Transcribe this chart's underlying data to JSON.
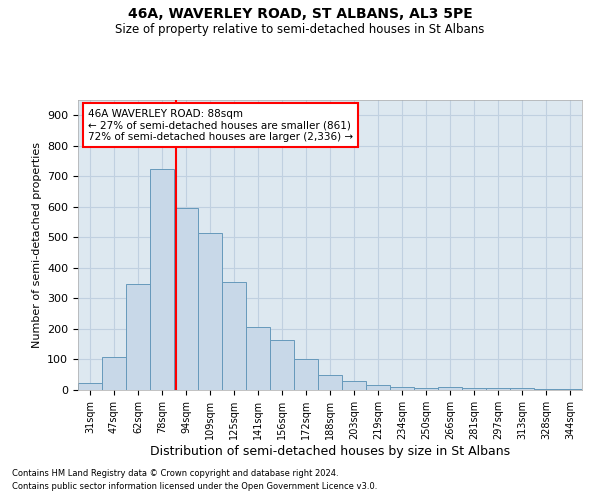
{
  "title1": "46A, WAVERLEY ROAD, ST ALBANS, AL3 5PE",
  "title2": "Size of property relative to semi-detached houses in St Albans",
  "xlabel": "Distribution of semi-detached houses by size in St Albans",
  "ylabel": "Number of semi-detached properties",
  "categories": [
    "31sqm",
    "47sqm",
    "62sqm",
    "78sqm",
    "94sqm",
    "109sqm",
    "125sqm",
    "141sqm",
    "156sqm",
    "172sqm",
    "188sqm",
    "203sqm",
    "219sqm",
    "234sqm",
    "250sqm",
    "266sqm",
    "281sqm",
    "297sqm",
    "313sqm",
    "328sqm",
    "344sqm"
  ],
  "bar_values": [
    22,
    107,
    347,
    725,
    595,
    515,
    355,
    207,
    165,
    103,
    50,
    30,
    18,
    10,
    5,
    10,
    5,
    5,
    5,
    3,
    3
  ],
  "bar_color": "#c8d8e8",
  "bar_edge_color": "#6699bb",
  "grid_color": "#c0d0e0",
  "background_color": "#dde8f0",
  "vline_color": "red",
  "annotation_title": "46A WAVERLEY ROAD: 88sqm",
  "annotation_line1": "← 27% of semi-detached houses are smaller (861)",
  "annotation_line2": "72% of semi-detached houses are larger (2,336) →",
  "footnote1": "Contains HM Land Registry data © Crown copyright and database right 2024.",
  "footnote2": "Contains public sector information licensed under the Open Government Licence v3.0.",
  "ylim": [
    0,
    950
  ],
  "yticks": [
    0,
    100,
    200,
    300,
    400,
    500,
    600,
    700,
    800,
    900
  ]
}
